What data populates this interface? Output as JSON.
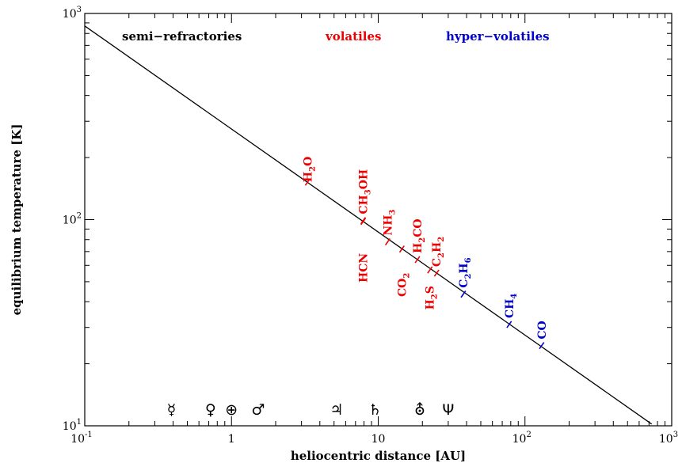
{
  "chart_data": {
    "type": "line",
    "xlabel": "heliocentric distance [AU]",
    "ylabel": "equilibrium temperature [K]",
    "xscale": "log",
    "yscale": "log",
    "xlim": [
      0.1,
      1000
    ],
    "ylim": [
      10,
      1000
    ],
    "grid": false,
    "x_tick_labels": [
      {
        "value": 0.1,
        "base": "10",
        "exp": "-1"
      },
      {
        "value": 1,
        "base": "1",
        "exp": ""
      },
      {
        "value": 10,
        "base": "10",
        "exp": ""
      },
      {
        "value": 100,
        "base": "10",
        "exp": "2"
      },
      {
        "value": 1000,
        "base": "10",
        "exp": "3"
      }
    ],
    "y_tick_labels": [
      {
        "value": 10,
        "base": "10",
        "exp": "1"
      },
      {
        "value": 100,
        "base": "10",
        "exp": "2"
      },
      {
        "value": 1000,
        "base": "10",
        "exp": "3"
      }
    ],
    "series": [
      {
        "x": [
          0.1,
          730
        ],
        "y": [
          870,
          10.2
        ],
        "color": "#000000"
      }
    ],
    "categories": [
      {
        "text": "semi−refractories",
        "color": "#000000"
      },
      {
        "text": "volatiles",
        "color": "#ee0000"
      },
      {
        "text": "hyper−volatiles",
        "color": "#0000cc"
      }
    ],
    "annotations": [
      {
        "label": [
          [
            "H",
            "n"
          ],
          [
            "2",
            "s"
          ],
          [
            "O",
            "n"
          ]
        ],
        "plain": "H2O",
        "x": 3.3,
        "y": 152,
        "color": "#ee0000",
        "offset": 0
      },
      {
        "label": [
          [
            "CH",
            "n"
          ],
          [
            "3",
            "s"
          ],
          [
            "OH",
            "n"
          ]
        ],
        "plain": "CH3OH",
        "x": 7.9,
        "y": 99,
        "color": "#ee0000",
        "offset": -8
      },
      {
        "label": [
          [
            "HCN",
            "n"
          ]
        ],
        "plain": "HCN",
        "x": 7.9,
        "y": 98,
        "color": "#ee0000",
        "offset": 40
      },
      {
        "label": [
          [
            "NH",
            "n"
          ],
          [
            "3",
            "s"
          ]
        ],
        "plain": "NH3",
        "x": 11.6,
        "y": 78,
        "color": "#ee0000",
        "offset": -8
      },
      {
        "label": [
          [
            "CO",
            "n"
          ],
          [
            "2",
            "s"
          ]
        ],
        "plain": "CO2",
        "x": 14.5,
        "y": 72,
        "color": "#ee0000",
        "offset": 30
      },
      {
        "label": [
          [
            "H",
            "n"
          ],
          [
            "2",
            "s"
          ],
          [
            "CO",
            "n"
          ]
        ],
        "plain": "H2CO",
        "x": 18.5,
        "y": 64,
        "color": "#ee0000",
        "offset": -8
      },
      {
        "label": [
          [
            "C",
            "n"
          ],
          [
            "2",
            "s"
          ],
          [
            "H",
            "n"
          ],
          [
            "2",
            "s"
          ]
        ],
        "plain": "C2H2",
        "x": 25,
        "y": 55,
        "color": "#ee0000",
        "offset": -8
      },
      {
        "label": [
          [
            "H",
            "n"
          ],
          [
            "2",
            "s"
          ],
          [
            "S",
            "n"
          ]
        ],
        "plain": "H2S",
        "x": 22.5,
        "y": 57,
        "color": "#ee0000",
        "offset": 20
      },
      {
        "label": [
          [
            "C",
            "n"
          ],
          [
            "2",
            "s"
          ],
          [
            "H",
            "n"
          ],
          [
            "6",
            "s"
          ]
        ],
        "plain": "C2H6",
        "x": 38,
        "y": 43.5,
        "color": "#0000cc",
        "offset": -8
      },
      {
        "label": [
          [
            "CH",
            "n"
          ],
          [
            "4",
            "s"
          ]
        ],
        "plain": "CH4",
        "x": 78,
        "y": 31,
        "color": "#0000cc",
        "offset": -8
      },
      {
        "label": [
          [
            "CO",
            "n"
          ]
        ],
        "plain": "CO",
        "x": 130,
        "y": 24.5,
        "color": "#0000cc",
        "offset": -8
      }
    ],
    "planet_symbols": [
      {
        "glyph": "☿",
        "name": "Mercury",
        "x": 0.39
      },
      {
        "glyph": "♀",
        "name": "Venus",
        "x": 0.72
      },
      {
        "glyph": "⊕",
        "name": "Earth",
        "x": 1.0
      },
      {
        "glyph": "♂",
        "name": "Mars",
        "x": 1.52
      },
      {
        "glyph": "♃",
        "name": "Jupiter",
        "x": 5.2
      },
      {
        "glyph": "♄",
        "name": "Saturn",
        "x": 9.5
      },
      {
        "glyph": "⛢",
        "name": "Uranus",
        "x": 19.2
      },
      {
        "glyph": "Ψ",
        "name": "Neptune",
        "x": 30
      }
    ]
  }
}
